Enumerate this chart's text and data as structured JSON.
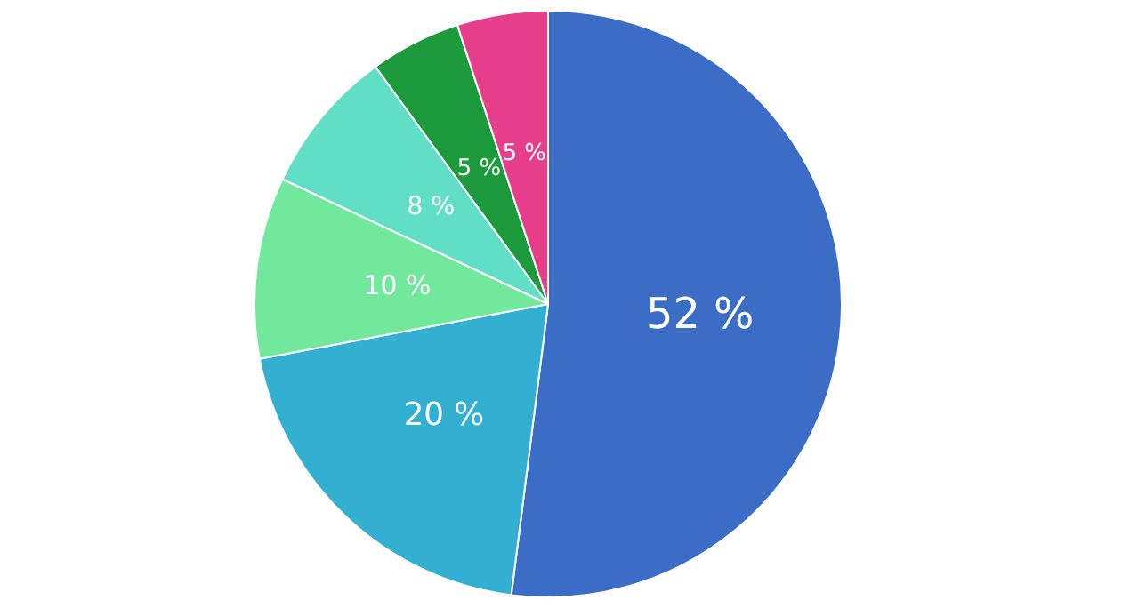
{
  "chart_data": {
    "type": "pie",
    "categories": [
      null,
      null,
      null,
      null,
      null,
      null
    ],
    "values": [
      52,
      20,
      10,
      8,
      5,
      5
    ],
    "colors": [
      "#3b6dc7",
      "#33afd2",
      "#72e89c",
      "#60dfc6",
      "#1d9a3b",
      "#e63e8a"
    ],
    "value_labels": [
      "52 %",
      "20 %",
      "10 %",
      "8 %",
      "5 %",
      "5 %"
    ]
  }
}
